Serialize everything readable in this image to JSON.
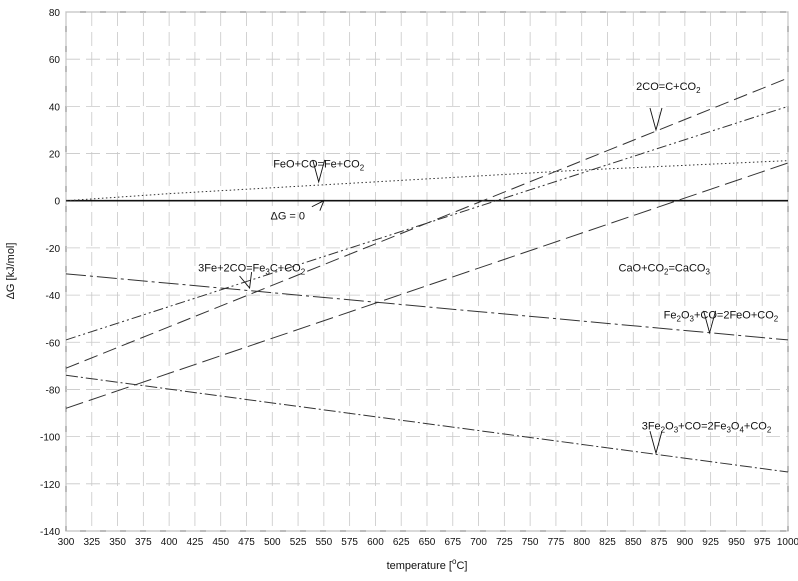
{
  "chart_data": {
    "type": "line",
    "title": "",
    "xlabel": {
      "base": "temperature  [",
      "sup": "o",
      "tail": "C]"
    },
    "ylabel": "ΔG [kJ/mol]",
    "xlim": [
      300,
      1000
    ],
    "ylim": [
      -140,
      80
    ],
    "x_ticks": [
      300,
      325,
      350,
      375,
      400,
      425,
      450,
      475,
      500,
      525,
      550,
      575,
      600,
      625,
      650,
      675,
      700,
      725,
      750,
      775,
      800,
      825,
      850,
      875,
      900,
      925,
      950,
      975,
      1000
    ],
    "y_ticks": [
      -140,
      -120,
      -100,
      -80,
      -60,
      -40,
      -20,
      0,
      20,
      40,
      60,
      80
    ],
    "grid": true,
    "legend": "none",
    "series": [
      {
        "id": "s-2co",
        "x": [
          300,
          1000
        ],
        "y": [
          -71,
          52
        ],
        "dash": "14,6",
        "color": "#333333"
      },
      {
        "id": "s-feo",
        "x": [
          300,
          400,
          500,
          600,
          700,
          800,
          900,
          1000
        ],
        "y": [
          0,
          3,
          5.5,
          8,
          10.5,
          13,
          15,
          17
        ],
        "dash": "1.5,2.5",
        "color": "#333333"
      },
      {
        "id": "s-fe3c",
        "x": [
          300,
          1000
        ],
        "y": [
          -59,
          40
        ],
        "dash": "10,3,2,3,2,3",
        "color": "#333333"
      },
      {
        "id": "s-cao",
        "x": [
          300,
          1000
        ],
        "y": [
          -88,
          16
        ],
        "dash": "18,6",
        "color": "#333333"
      },
      {
        "id": "s-fe2o3",
        "x": [
          300,
          1000
        ],
        "y": [
          -31,
          -59
        ],
        "dash": "20,4,3,4",
        "color": "#333333"
      },
      {
        "id": "s-3fe2o3",
        "x": [
          300,
          1000
        ],
        "y": [
          -74,
          -115
        ],
        "dash": "12,3,2,3",
        "color": "#333333"
      }
    ],
    "zero_line": {
      "y": 0,
      "color": "#111111"
    },
    "annotations": [
      {
        "id": "ann-2co",
        "parts": [
          [
            "2CO=C+CO",
            ""
          ],
          [
            "2",
            "sub"
          ]
        ],
        "text_pos": [
          884,
          47
        ],
        "arrow_tip": [
          872,
          30
        ]
      },
      {
        "id": "ann-feo",
        "parts": [
          [
            "FeO+CO=Fe+CO",
            ""
          ],
          [
            "2",
            "sub"
          ]
        ],
        "text_pos": [
          545,
          14
        ],
        "arrow_tip": [
          545,
          8
        ]
      },
      {
        "id": "ann-dg0",
        "parts": [
          [
            "ΔG = 0",
            ""
          ]
        ],
        "text_pos": [
          515,
          -8
        ],
        "arrow_tip": [
          550,
          0
        ]
      },
      {
        "id": "ann-fe3c",
        "parts": [
          [
            "3Fe+2CO=Fe",
            ""
          ],
          [
            "3",
            "sub"
          ],
          [
            "C+CO",
            ""
          ],
          [
            "2",
            "sub"
          ]
        ],
        "text_pos": [
          480,
          -30
        ],
        "arrow_tip": [
          478,
          -37
        ]
      },
      {
        "id": "ann-cao",
        "parts": [
          [
            "CaO+CO",
            ""
          ],
          [
            "2",
            "sub"
          ],
          [
            "=CaCO",
            ""
          ],
          [
            "3",
            "sub"
          ]
        ],
        "text_pos": [
          880,
          -30
        ],
        "arrow_tip": [
          880,
          -30
        ],
        "no_arrow": true
      },
      {
        "id": "ann-fe2o3",
        "parts": [
          [
            "Fe",
            ""
          ],
          [
            "2",
            "sub"
          ],
          [
            "O",
            ""
          ],
          [
            "3",
            "sub"
          ],
          [
            "+CO=2FeO+CO",
            ""
          ],
          [
            "2",
            "sub"
          ]
        ],
        "text_pos": [
          935,
          -50
        ],
        "arrow_tip": [
          924,
          -56
        ]
      },
      {
        "id": "ann-3fe2o3",
        "parts": [
          [
            "3Fe",
            ""
          ],
          [
            "2",
            "sub"
          ],
          [
            "O",
            ""
          ],
          [
            "3",
            "sub"
          ],
          [
            "+CO=2Fe",
            ""
          ],
          [
            "3",
            "sub"
          ],
          [
            "O",
            ""
          ],
          [
            "4",
            "sub"
          ],
          [
            "+CO",
            ""
          ],
          [
            "2",
            "sub"
          ]
        ],
        "text_pos": [
          921,
          -97
        ],
        "arrow_tip": [
          872,
          -107
        ]
      }
    ]
  }
}
